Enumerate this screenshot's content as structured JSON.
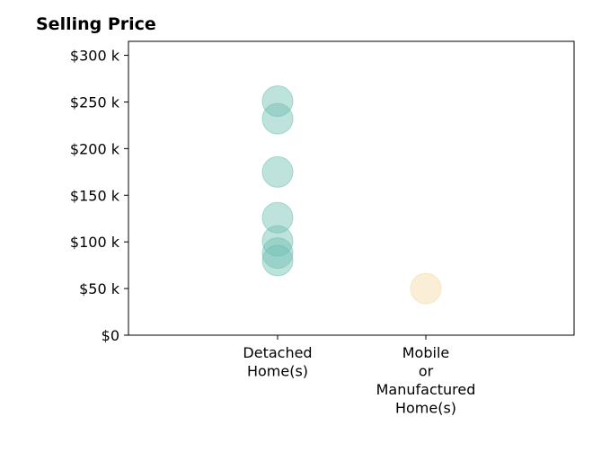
{
  "chart_data": {
    "type": "scatter",
    "title": "Selling Price",
    "xlabel": "",
    "ylabel": "",
    "categories": [
      "Detached Home(s)",
      "Mobile or Manufactured Home(s)"
    ],
    "category_tick_lines": [
      [
        "Detached",
        "Home(s)"
      ],
      [
        "Mobile",
        "or",
        "Manufactured",
        "Home(s)"
      ]
    ],
    "ylim": [
      0,
      315000
    ],
    "yticks": [
      0,
      50000,
      100000,
      150000,
      200000,
      250000,
      300000
    ],
    "ytick_labels": [
      "$0",
      "$50 k",
      "$100 k",
      "$150 k",
      "$200 k",
      "$250 k",
      "$300 k"
    ],
    "grid": false,
    "points": [
      {
        "category": "Detached Home(s)",
        "y": 251000
      },
      {
        "category": "Detached Home(s)",
        "y": 232000
      },
      {
        "category": "Detached Home(s)",
        "y": 175000
      },
      {
        "category": "Detached Home(s)",
        "y": 126000
      },
      {
        "category": "Detached Home(s)",
        "y": 101000
      },
      {
        "category": "Detached Home(s)",
        "y": 88000
      },
      {
        "category": "Detached Home(s)",
        "y": 80000
      },
      {
        "category": "Mobile or Manufactured Home(s)",
        "y": 50000
      }
    ],
    "colors": {
      "Detached Home(s)": "#6fbfb2",
      "Mobile or Manufactured Home(s)": "#f3d9a6"
    }
  }
}
